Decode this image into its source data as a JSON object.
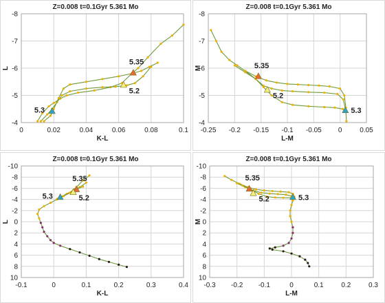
{
  "chart_data": [
    {
      "type": "scatter",
      "title": "Z=0.008  t=0.1Gyr 5.361 Mo",
      "xlabel": "K-L",
      "ylabel": "L",
      "xlim": [
        0,
        0.1
      ],
      "ylim": [
        -4,
        -8
      ],
      "y_inverted": true,
      "xticks": [
        "0",
        "0.02",
        "0.04",
        "0.06",
        "0.08",
        "0.1"
      ],
      "yticks": [
        "-8",
        "-7",
        "-6",
        "-5",
        "-4"
      ],
      "grid": true,
      "series": [
        {
          "points": [
            [
              0.01,
              -4.05
            ],
            [
              0.013,
              -4.35
            ],
            [
              0.017,
              -4.6
            ],
            [
              0.02,
              -4.72
            ],
            [
              0.024,
              -4.88
            ],
            [
              0.028,
              -5.0
            ],
            [
              0.035,
              -5.1
            ],
            [
              0.045,
              -5.18
            ],
            [
              0.055,
              -5.3
            ],
            [
              0.062,
              -5.45
            ],
            [
              0.068,
              -5.8
            ],
            [
              0.072,
              -6.0
            ],
            [
              0.078,
              -6.4
            ],
            [
              0.086,
              -6.9
            ],
            [
              0.093,
              -7.2
            ],
            [
              0.1,
              -7.6
            ]
          ]
        },
        {
          "points": [
            [
              0.012,
              -4.05
            ],
            [
              0.016,
              -4.3
            ],
            [
              0.019,
              -4.5
            ],
            [
              0.022,
              -4.75
            ],
            [
              0.025,
              -5.0
            ],
            [
              0.03,
              -5.15
            ],
            [
              0.04,
              -5.25
            ],
            [
              0.05,
              -5.3
            ],
            [
              0.058,
              -5.32
            ],
            [
              0.065,
              -5.37
            ],
            [
              0.07,
              -5.45
            ],
            [
              0.075,
              -5.7
            ],
            [
              0.08,
              -6.05
            ]
          ]
        },
        {
          "points": [
            [
              0.014,
              -4.05
            ],
            [
              0.018,
              -4.25
            ],
            [
              0.02,
              -4.5
            ],
            [
              0.023,
              -4.9
            ],
            [
              0.026,
              -5.25
            ],
            [
              0.03,
              -5.4
            ],
            [
              0.04,
              -5.5
            ],
            [
              0.05,
              -5.6
            ],
            [
              0.06,
              -5.7
            ],
            [
              0.068,
              -5.8
            ],
            [
              0.074,
              -5.9
            ],
            [
              0.079,
              -6.05
            ],
            [
              0.084,
              -6.2
            ]
          ]
        }
      ],
      "markers": [
        {
          "label": "5.35",
          "x": 0.069,
          "y": -5.83,
          "color": "#e56b2f"
        },
        {
          "label": "5.2",
          "x": 0.063,
          "y": -5.38,
          "color": "#f2f27a"
        },
        {
          "label": "5.3",
          "x": 0.019,
          "y": -4.42,
          "color": "#2aa6c8"
        }
      ]
    },
    {
      "type": "scatter",
      "title": "Z=0.008  t=0.1Gyr 5.361 Mo",
      "xlabel": "L-M",
      "ylabel": "M",
      "xlim": [
        -0.25,
        0.05
      ],
      "ylim": [
        -4,
        -8
      ],
      "y_inverted": true,
      "xticks": [
        "-0.25",
        "-0.2",
        "-0.15",
        "-0.1",
        "-0.05",
        "0",
        "0.05"
      ],
      "yticks": [
        "-8",
        "-7",
        "-6",
        "-5",
        "-4"
      ],
      "grid": true,
      "series": [
        {
          "points": [
            [
              -0.245,
              -7.4
            ],
            [
              -0.235,
              -7.0
            ],
            [
              -0.225,
              -6.6
            ],
            [
              -0.21,
              -6.3
            ],
            [
              -0.195,
              -6.1
            ],
            [
              -0.18,
              -5.9
            ],
            [
              -0.16,
              -5.7
            ],
            [
              -0.14,
              -5.55
            ],
            [
              -0.12,
              -5.47
            ],
            [
              -0.1,
              -5.42
            ],
            [
              -0.08,
              -5.4
            ],
            [
              -0.06,
              -5.38
            ],
            [
              -0.04,
              -5.36
            ],
            [
              -0.02,
              -5.33
            ],
            [
              0.0,
              -5.25
            ],
            [
              0.008,
              -5.0
            ],
            [
              0.011,
              -4.55
            ]
          ]
        },
        {
          "points": [
            [
              -0.2,
              -6.1
            ],
            [
              -0.18,
              -5.85
            ],
            [
              -0.16,
              -5.6
            ],
            [
              -0.145,
              -5.35
            ],
            [
              -0.13,
              -5.25
            ],
            [
              -0.11,
              -5.18
            ],
            [
              -0.09,
              -5.15
            ],
            [
              -0.06,
              -5.12
            ],
            [
              -0.03,
              -5.1
            ],
            [
              -0.005,
              -5.05
            ],
            [
              0.006,
              -4.85
            ],
            [
              0.01,
              -4.5
            ]
          ]
        },
        {
          "points": [
            [
              -0.18,
              -5.9
            ],
            [
              -0.16,
              -5.6
            ],
            [
              -0.145,
              -5.3
            ],
            [
              -0.13,
              -5.0
            ],
            [
              -0.11,
              -4.75
            ],
            [
              -0.09,
              -4.65
            ],
            [
              -0.06,
              -4.6
            ],
            [
              -0.03,
              -4.57
            ],
            [
              -0.01,
              -4.55
            ],
            [
              0.005,
              -4.5
            ],
            [
              0.011,
              -4.4
            ],
            [
              0.012,
              -4.05
            ]
          ]
        }
      ],
      "markers": [
        {
          "label": "5.35",
          "x": -0.155,
          "y": -5.7,
          "color": "#e56b2f"
        },
        {
          "label": "5.2",
          "x": -0.138,
          "y": -5.2,
          "color": "#f2f27a"
        },
        {
          "label": "5.3",
          "x": 0.01,
          "y": -4.45,
          "color": "#2aa6c8"
        }
      ]
    },
    {
      "type": "scatter",
      "title": "Z=0.008  t=0.1Gyr 5.361 Mo",
      "xlabel": "K-L",
      "ylabel": "L",
      "xlim": [
        -0.1,
        0.4
      ],
      "ylim": [
        10,
        -10
      ],
      "y_inverted": true,
      "xticks": [
        "-0.1",
        "0",
        "0.1",
        "0.2",
        "0.3",
        "0.4"
      ],
      "yticks": [
        "-10",
        "-8",
        "-6",
        "-4",
        "-2",
        "0",
        "2",
        "4",
        "6",
        "8",
        "10"
      ],
      "grid": true,
      "series": [
        {
          "points": [
            [
              0.11,
              -8.3
            ],
            [
              0.09,
              -7.4
            ],
            [
              0.07,
              -6.2
            ],
            [
              0.05,
              -5.2
            ],
            [
              0.03,
              -4.6
            ],
            [
              0.01,
              -4.0
            ],
            [
              -0.01,
              -3.4
            ],
            [
              -0.03,
              -2.8
            ],
            [
              -0.045,
              -2.2
            ],
            [
              -0.05,
              -1.4
            ],
            [
              -0.045,
              -0.6
            ],
            [
              -0.04,
              0.2
            ],
            [
              -0.035,
              1.0
            ],
            [
              -0.03,
              1.8
            ],
            [
              -0.02,
              2.6
            ],
            [
              -0.01,
              3.3
            ],
            [
              0.0,
              3.8
            ],
            [
              0.02,
              4.3
            ],
            [
              0.05,
              4.9
            ],
            [
              0.08,
              5.5
            ],
            [
              0.11,
              6.1
            ],
            [
              0.14,
              6.7
            ],
            [
              0.17,
              7.2
            ],
            [
              0.2,
              7.7
            ],
            [
              0.225,
              8.1
            ]
          ]
        },
        {
          "points": [
            [
              0.02,
              -4.4
            ],
            [
              0.04,
              -5.0
            ],
            [
              0.06,
              -5.6
            ],
            [
              0.08,
              -6.2
            ],
            [
              0.1,
              -7.0
            ]
          ]
        },
        {
          "points": [
            [
              0.01,
              -4.1
            ],
            [
              0.03,
              -4.6
            ],
            [
              0.05,
              -5.2
            ],
            [
              0.07,
              -5.8
            ],
            [
              0.09,
              -6.3
            ]
          ]
        }
      ],
      "markers": [
        {
          "label": "5.35",
          "x": 0.07,
          "y": -5.8,
          "color": "#e56b2f"
        },
        {
          "label": "5.2",
          "x": 0.06,
          "y": -5.3,
          "color": "#f2f27a"
        },
        {
          "label": "5.3",
          "x": 0.02,
          "y": -4.4,
          "color": "#2aa6c8"
        }
      ]
    },
    {
      "type": "scatter",
      "title": "Z=0.008  t=0.1Gyr 5.361 Mo",
      "xlabel": "L-M",
      "ylabel": "M",
      "xlim": [
        -0.3,
        0.3
      ],
      "ylim": [
        10,
        -10
      ],
      "y_inverted": true,
      "xticks": [
        "-0.3",
        "-0.2",
        "-0.1",
        "0",
        "0.1",
        "0.2",
        "0.3"
      ],
      "yticks": [
        "-10",
        "-8",
        "-6",
        "-4",
        "-2",
        "0",
        "2",
        "4",
        "6",
        "8",
        "10"
      ],
      "grid": true,
      "series": [
        {
          "points": [
            [
              -0.245,
              -8.2
            ],
            [
              -0.22,
              -7.5
            ],
            [
              -0.19,
              -6.8
            ],
            [
              -0.16,
              -6.2
            ],
            [
              -0.13,
              -5.8
            ],
            [
              -0.1,
              -5.6
            ],
            [
              -0.07,
              -5.5
            ],
            [
              -0.04,
              -5.4
            ],
            [
              -0.01,
              -5.3
            ],
            [
              0.005,
              -5.0
            ],
            [
              0.01,
              -4.5
            ],
            [
              0.005,
              -3.8
            ],
            [
              0.0,
              -3.0
            ],
            [
              -0.005,
              -2.0
            ],
            [
              -0.005,
              -1.0
            ],
            [
              0.0,
              0.0
            ],
            [
              0.005,
              1.0
            ],
            [
              0.005,
              2.0
            ],
            [
              0.0,
              3.0
            ],
            [
              -0.01,
              3.8
            ],
            [
              -0.03,
              4.3
            ],
            [
              -0.06,
              4.6
            ],
            [
              -0.08,
              4.8
            ],
            [
              -0.07,
              5.0
            ],
            [
              -0.03,
              5.3
            ],
            [
              0.0,
              5.7
            ],
            [
              0.03,
              6.2
            ],
            [
              0.05,
              6.8
            ],
            [
              0.06,
              7.4
            ],
            [
              0.065,
              8.0
            ]
          ]
        },
        {
          "points": [
            [
              -0.2,
              -6.9
            ],
            [
              -0.17,
              -6.2
            ],
            [
              -0.14,
              -5.6
            ],
            [
              -0.11,
              -5.2
            ],
            [
              -0.08,
              -5.05
            ],
            [
              -0.05,
              -4.95
            ],
            [
              -0.02,
              -4.85
            ],
            [
              0.0,
              -4.6
            ]
          ]
        },
        {
          "points": [
            [
              -0.18,
              -6.5
            ],
            [
              -0.15,
              -5.8
            ],
            [
              -0.12,
              -5.0
            ],
            [
              -0.09,
              -4.5
            ],
            [
              -0.06,
              -4.35
            ],
            [
              -0.03,
              -4.3
            ],
            [
              0.0,
              -4.3
            ],
            [
              0.01,
              -4.2
            ]
          ]
        }
      ],
      "markers": [
        {
          "label": "5.35",
          "x": -0.155,
          "y": -5.9,
          "color": "#e56b2f"
        },
        {
          "label": "5.2",
          "x": -0.14,
          "y": -5.1,
          "color": "#f2f27a"
        },
        {
          "label": "5.3",
          "x": 0.005,
          "y": -4.4,
          "color": "#2aa6c8"
        }
      ]
    }
  ]
}
